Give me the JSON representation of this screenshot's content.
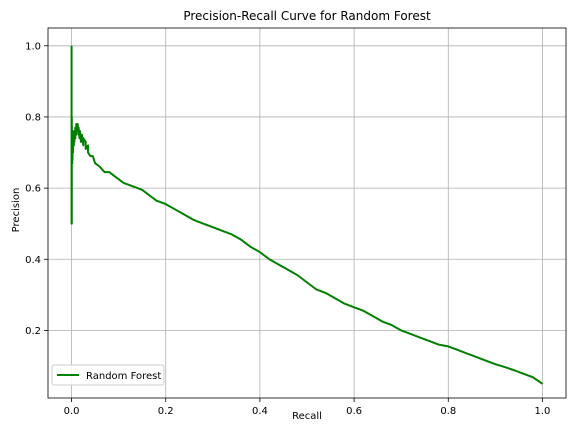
{
  "chart_data": {
    "type": "line",
    "title": "Precision-Recall Curve for Random Forest",
    "xlabel": "Recall",
    "ylabel": "Precision",
    "xlim": [
      -0.05,
      1.05
    ],
    "ylim": [
      0.01,
      1.05
    ],
    "xticks": [
      0.0,
      0.2,
      0.4,
      0.6,
      0.8,
      1.0
    ],
    "xtick_labels": [
      "0.0",
      "0.2",
      "0.4",
      "0.6",
      "0.8",
      "1.0"
    ],
    "yticks": [
      0.2,
      0.4,
      0.6,
      0.8,
      1.0
    ],
    "ytick_labels": [
      "0.2",
      "0.4",
      "0.6",
      "0.8",
      "1.0"
    ],
    "grid": true,
    "legend_position": "lower-left",
    "series": [
      {
        "name": "Random Forest",
        "color": "#008000",
        "x": [
          0.0,
          0.0,
          0.0,
          0.0005,
          0.0005,
          0.001,
          0.001,
          0.0015,
          0.0015,
          0.002,
          0.002,
          0.003,
          0.003,
          0.004,
          0.004,
          0.005,
          0.005,
          0.006,
          0.006,
          0.008,
          0.008,
          0.01,
          0.01,
          0.012,
          0.013,
          0.015,
          0.015,
          0.017,
          0.018,
          0.02,
          0.022,
          0.025,
          0.025,
          0.03,
          0.03,
          0.035,
          0.035,
          0.04,
          0.045,
          0.05,
          0.06,
          0.07,
          0.08,
          0.09,
          0.1,
          0.11,
          0.12,
          0.13,
          0.14,
          0.15,
          0.16,
          0.17,
          0.18,
          0.2,
          0.22,
          0.24,
          0.26,
          0.28,
          0.3,
          0.32,
          0.34,
          0.36,
          0.38,
          0.4,
          0.42,
          0.44,
          0.46,
          0.48,
          0.5,
          0.52,
          0.54,
          0.56,
          0.58,
          0.6,
          0.62,
          0.64,
          0.66,
          0.68,
          0.7,
          0.72,
          0.74,
          0.76,
          0.78,
          0.8,
          0.82,
          0.84,
          0.86,
          0.88,
          0.9,
          0.92,
          0.94,
          0.96,
          0.98,
          1.0
        ],
        "y": [
          1.0,
          0.5,
          0.83,
          0.5,
          0.8,
          0.67,
          0.75,
          0.67,
          0.72,
          0.68,
          0.74,
          0.7,
          0.76,
          0.72,
          0.75,
          0.72,
          0.76,
          0.73,
          0.75,
          0.74,
          0.77,
          0.75,
          0.78,
          0.76,
          0.78,
          0.75,
          0.77,
          0.74,
          0.76,
          0.73,
          0.75,
          0.72,
          0.74,
          0.73,
          0.71,
          0.72,
          0.7,
          0.69,
          0.69,
          0.67,
          0.66,
          0.645,
          0.645,
          0.635,
          0.625,
          0.615,
          0.61,
          0.605,
          0.6,
          0.595,
          0.585,
          0.575,
          0.565,
          0.555,
          0.54,
          0.525,
          0.51,
          0.5,
          0.49,
          0.48,
          0.47,
          0.455,
          0.435,
          0.42,
          0.4,
          0.385,
          0.37,
          0.355,
          0.335,
          0.315,
          0.305,
          0.29,
          0.275,
          0.265,
          0.255,
          0.24,
          0.225,
          0.215,
          0.2,
          0.19,
          0.18,
          0.17,
          0.16,
          0.155,
          0.145,
          0.135,
          0.125,
          0.115,
          0.105,
          0.097,
          0.088,
          0.078,
          0.068,
          0.05
        ]
      }
    ]
  }
}
